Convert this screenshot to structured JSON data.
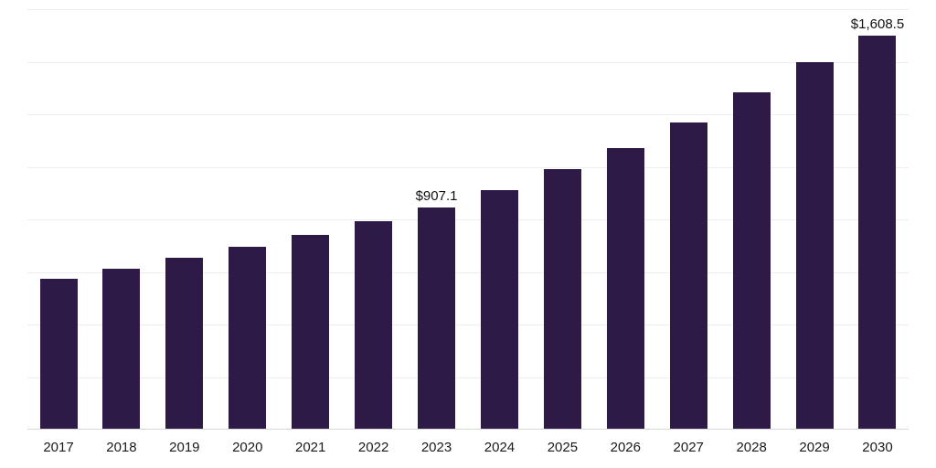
{
  "chart_data": {
    "type": "bar",
    "title": "",
    "xlabel": "",
    "ylabel": "",
    "categories": [
      "2017",
      "2018",
      "2019",
      "2020",
      "2021",
      "2022",
      "2023",
      "2024",
      "2025",
      "2026",
      "2027",
      "2028",
      "2029",
      "2030"
    ],
    "values": [
      615,
      655,
      700,
      747,
      795,
      851,
      907.1,
      975,
      1064,
      1150,
      1254,
      1374,
      1500,
      1608.5
    ],
    "data_labels": [
      "",
      "",
      "",
      "",
      "",
      "",
      "$907.1",
      "",
      "",
      "",
      "",
      "",
      "",
      "$1,608.5"
    ],
    "ylim": [
      0,
      1715
    ],
    "grid": true,
    "gridline_intervals": 8,
    "legend_position": "none",
    "bar_color": "#2e1a47",
    "gridline_color": "#eeeeee",
    "axis_line_color": "#d6d6d6",
    "label_color": "#111111",
    "tick_color": "#1a1a1a"
  }
}
